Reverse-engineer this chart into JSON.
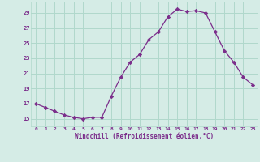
{
  "x": [
    0,
    1,
    2,
    3,
    4,
    5,
    6,
    7,
    8,
    9,
    10,
    11,
    12,
    13,
    14,
    15,
    16,
    17,
    18,
    19,
    20,
    21,
    22,
    23
  ],
  "y": [
    17.0,
    16.5,
    16.0,
    15.5,
    15.2,
    15.0,
    15.2,
    15.2,
    18.0,
    20.5,
    22.5,
    23.5,
    25.5,
    26.5,
    28.5,
    29.5,
    29.2,
    29.3,
    29.0,
    26.5,
    24.0,
    22.5,
    20.5,
    19.5
  ],
  "line_color": "#7b2d8b",
  "marker": "D",
  "marker_size": 2.2,
  "bg_color": "#d5ece6",
  "grid_color": "#b0d8cc",
  "xlabel": "Windchill (Refroidissement éolien,°C)",
  "ylabel_ticks": [
    15,
    17,
    19,
    21,
    23,
    25,
    27,
    29
  ],
  "ylim": [
    14.0,
    30.5
  ],
  "xlim": [
    -0.5,
    23.5
  ],
  "tick_color": "#7b2d8b",
  "label_color": "#7b2d8b"
}
